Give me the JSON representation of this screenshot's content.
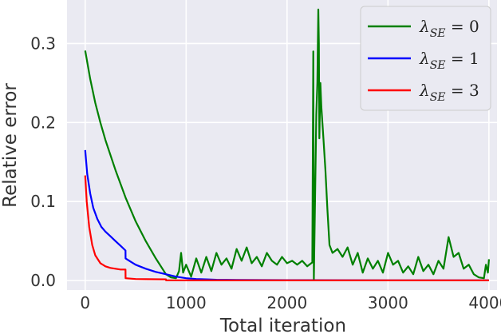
{
  "chart_data": {
    "type": "line",
    "xlabel": "Total iteration",
    "ylabel": "Relative error",
    "xlim": [
      -180,
      4080
    ],
    "ylim": [
      -0.012,
      0.355
    ],
    "xticks": [
      0,
      1000,
      2000,
      3000,
      4000
    ],
    "xtick_labels": [
      "0",
      "1000",
      "2000",
      "3000",
      "4000"
    ],
    "yticks": [
      0.0,
      0.1,
      0.2,
      0.3
    ],
    "ytick_labels": [
      "0.0",
      "0.1",
      "0.2",
      "0.3"
    ],
    "grid": true,
    "legend_position": "top-right",
    "series": [
      {
        "name": "λ_SE = 0",
        "legend_main": "λ",
        "legend_sub": "SE",
        "legend_tail": " = 0",
        "color": "#008000",
        "x": [
          0,
          50,
          100,
          150,
          200,
          300,
          400,
          500,
          600,
          700,
          800,
          850,
          900,
          930,
          950,
          970,
          1000,
          1050,
          1100,
          1150,
          1200,
          1250,
          1300,
          1350,
          1400,
          1450,
          1500,
          1550,
          1600,
          1650,
          1700,
          1750,
          1800,
          1850,
          1900,
          1950,
          2000,
          2050,
          2100,
          2150,
          2200,
          2250,
          2260,
          2265,
          2290,
          2300,
          2310,
          2315,
          2320,
          2330,
          2340,
          2350,
          2360,
          2380,
          2400,
          2420,
          2450,
          2500,
          2550,
          2600,
          2650,
          2700,
          2750,
          2800,
          2850,
          2900,
          2950,
          3000,
          3050,
          3100,
          3150,
          3200,
          3250,
          3300,
          3350,
          3400,
          3450,
          3500,
          3550,
          3600,
          3650,
          3700,
          3750,
          3800,
          3850,
          3900,
          3950,
          3970,
          3990,
          4000
        ],
        "y": [
          0.291,
          0.255,
          0.225,
          0.2,
          0.178,
          0.14,
          0.105,
          0.075,
          0.05,
          0.028,
          0.008,
          0.004,
          0.003,
          0.012,
          0.035,
          0.01,
          0.02,
          0.005,
          0.028,
          0.01,
          0.03,
          0.012,
          0.035,
          0.02,
          0.028,
          0.015,
          0.04,
          0.025,
          0.042,
          0.022,
          0.03,
          0.018,
          0.035,
          0.025,
          0.02,
          0.03,
          0.022,
          0.025,
          0.02,
          0.025,
          0.018,
          0.023,
          0.29,
          0.001,
          0.21,
          0.25,
          0.343,
          0.3,
          0.18,
          0.25,
          0.22,
          0.2,
          0.18,
          0.14,
          0.09,
          0.045,
          0.035,
          0.04,
          0.03,
          0.042,
          0.02,
          0.035,
          0.01,
          0.028,
          0.015,
          0.025,
          0.01,
          0.035,
          0.02,
          0.025,
          0.01,
          0.018,
          0.008,
          0.03,
          0.012,
          0.02,
          0.008,
          0.025,
          0.015,
          0.055,
          0.03,
          0.035,
          0.015,
          0.02,
          0.008,
          0.004,
          0.003,
          0.02,
          0.01,
          0.027
        ]
      },
      {
        "name": "λ_SE = 1",
        "legend_main": "λ",
        "legend_sub": "SE",
        "legend_tail": " = 1",
        "color": "#0000ff",
        "x": [
          0,
          20,
          50,
          80,
          120,
          160,
          200,
          250,
          300,
          350,
          399,
          400,
          450,
          500,
          600,
          700,
          800,
          900,
          1000,
          1100,
          1200,
          1300,
          1500,
          2000,
          2500,
          3000,
          3500,
          4000
        ],
        "y": [
          0.165,
          0.135,
          0.11,
          0.092,
          0.078,
          0.068,
          0.062,
          0.056,
          0.05,
          0.044,
          0.038,
          0.028,
          0.024,
          0.02,
          0.015,
          0.011,
          0.008,
          0.005,
          0.003,
          0.002,
          0.0015,
          0.001,
          0.0008,
          0.0005,
          0.0004,
          0.0003,
          0.0003,
          0.0003
        ]
      },
      {
        "name": "λ_SE = 3",
        "legend_main": "λ",
        "legend_sub": "SE",
        "legend_tail": " = 3",
        "color": "#ff0000",
        "x": [
          0,
          15,
          40,
          70,
          100,
          150,
          200,
          250,
          300,
          350,
          399,
          400,
          450,
          500,
          600,
          700,
          800,
          801,
          900,
          1000,
          1500,
          2000,
          2500,
          3000,
          3500,
          4000
        ],
        "y": [
          0.133,
          0.1,
          0.068,
          0.045,
          0.032,
          0.022,
          0.018,
          0.016,
          0.015,
          0.014,
          0.014,
          0.003,
          0.0025,
          0.002,
          0.0018,
          0.0016,
          0.0015,
          0.0003,
          0.0003,
          0.0002,
          0.0002,
          0.0002,
          0.0002,
          0.0002,
          0.0002,
          0.0002
        ]
      }
    ]
  }
}
